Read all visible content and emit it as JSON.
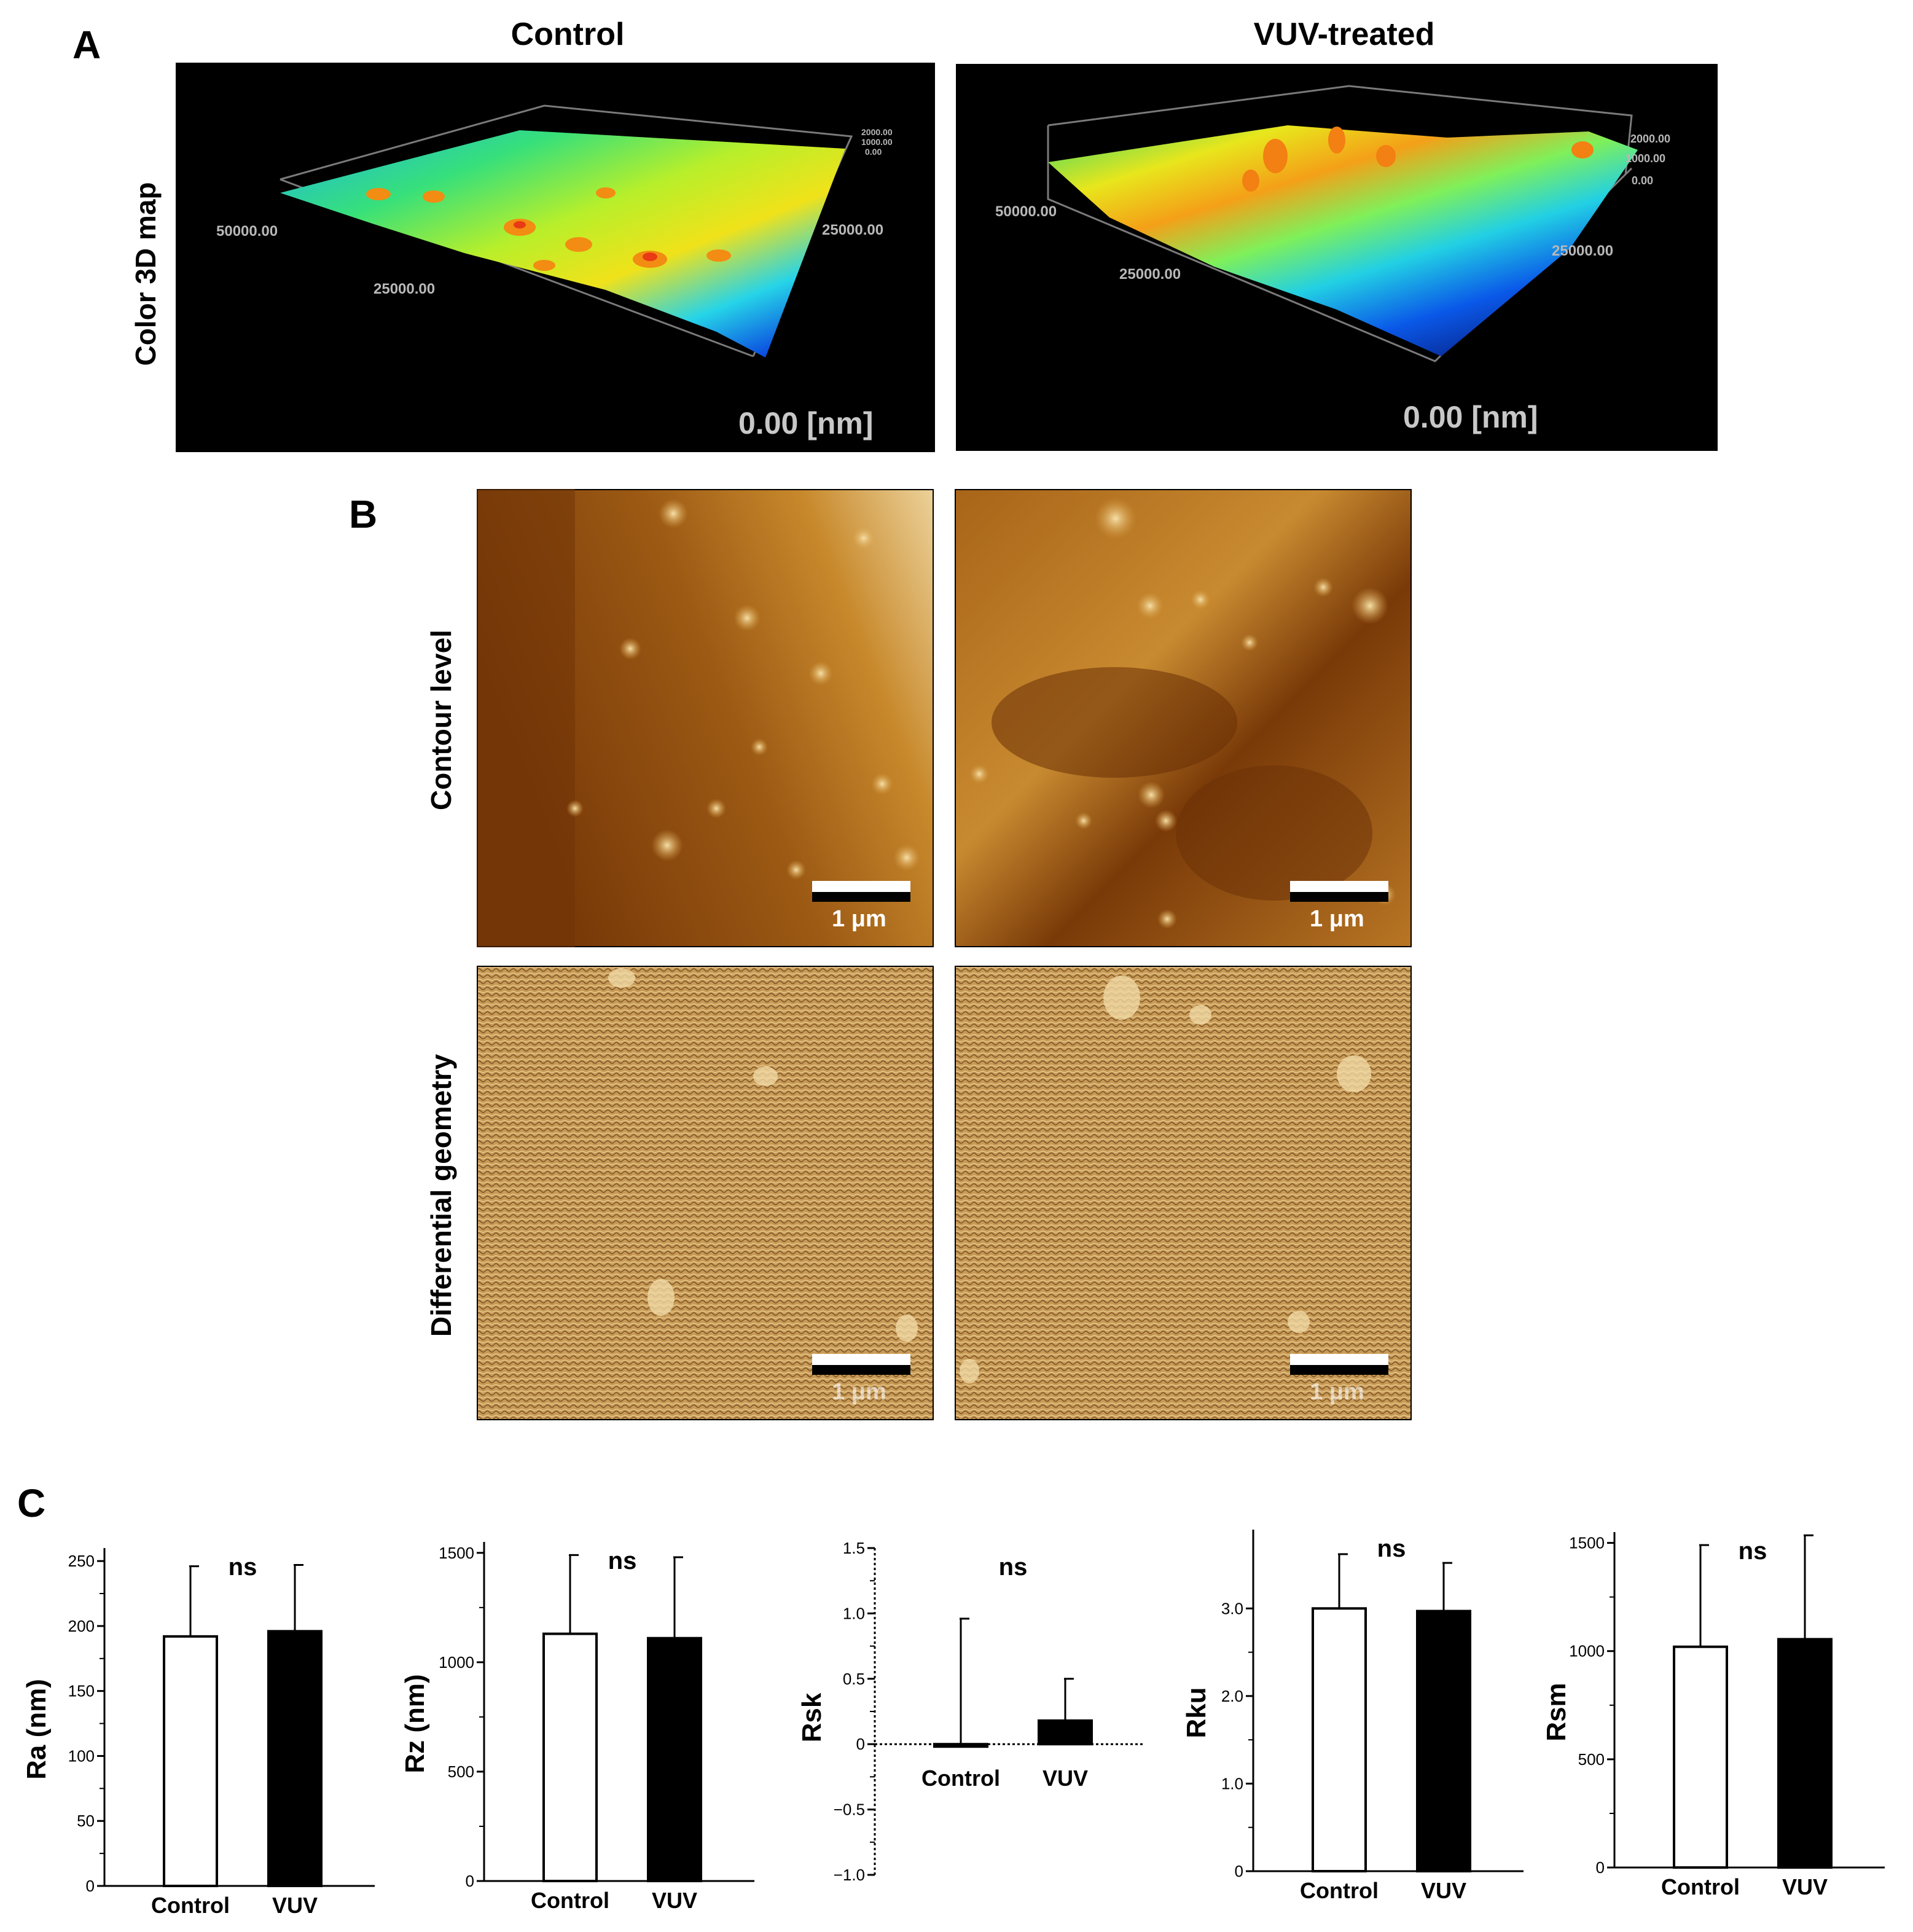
{
  "figure": {
    "panels": [
      "A",
      "B",
      "C"
    ],
    "col_titles": [
      "Control",
      "VUV-treated"
    ],
    "row_labels": {
      "a": "Color 3D map",
      "b_top": "Contour level",
      "b_bottom": "Differential geometry"
    },
    "map3d": {
      "control": {
        "ticks": [
          "50000.00",
          "25000.00",
          "25000.00",
          "2000.00",
          "1000.00",
          "0.00"
        ],
        "origin": "0.00 [nm]"
      },
      "vuv": {
        "ticks": [
          "50000.00",
          "25000.00",
          "25000.00",
          "2000.00",
          "1000.00",
          "0.00"
        ],
        "origin": "0.00 [nm]"
      }
    },
    "scalebar": "1 μm",
    "colors": {
      "control_bar": "#ffffff",
      "vuv_bar": "#000000",
      "map_bg": "#000000"
    }
  },
  "chart_data": [
    {
      "type": "bar",
      "ylabel": "Ra (nm)",
      "categories": [
        "Control",
        "VUV"
      ],
      "values": [
        192,
        196
      ],
      "errors": [
        54,
        51
      ],
      "annotation": "ns",
      "ylim": [
        0,
        260
      ],
      "yticks": [
        0,
        50,
        100,
        150,
        200,
        250
      ],
      "yticklabels": [
        "0",
        "50",
        "100",
        "150",
        "200",
        "250"
      ]
    },
    {
      "type": "bar",
      "ylabel": "Rz (nm)",
      "categories": [
        "Control",
        "VUV"
      ],
      "values": [
        1130,
        1110
      ],
      "errors": [
        360,
        370
      ],
      "annotation": "ns",
      "ylim": [
        0,
        1550
      ],
      "yticks": [
        0,
        500,
        1000,
        1500
      ],
      "yticklabels": [
        "0",
        "500",
        "1000",
        "1500"
      ]
    },
    {
      "type": "bar",
      "ylabel": "Rsk",
      "categories": [
        "Control",
        "VUV"
      ],
      "values": [
        0.0,
        0.18
      ],
      "errors": [
        0.96,
        0.32
      ],
      "annotation": "ns",
      "ylim": [
        -1.0,
        1.5
      ],
      "yticks": [
        -1.0,
        -0.5,
        0,
        0.5,
        1.0,
        1.5
      ],
      "yticklabels": [
        "−1.0",
        "−0.5",
        "0",
        "0.5",
        "1.0",
        "1.5"
      ]
    },
    {
      "type": "bar",
      "ylabel": "Rku",
      "categories": [
        "Control",
        "VUV"
      ],
      "values": [
        3.0,
        2.97
      ],
      "errors": [
        0.62,
        0.55
      ],
      "annotation": "ns",
      "ylim": [
        0,
        3.9
      ],
      "yticks": [
        0,
        1.0,
        2.0,
        3.0
      ],
      "yticklabels": [
        "0",
        "1.0",
        "2.0",
        "3.0"
      ]
    },
    {
      "type": "bar",
      "ylabel": "Rsm",
      "categories": [
        "Control",
        "VUV"
      ],
      "values": [
        1020,
        1055
      ],
      "errors": [
        470,
        480
      ],
      "annotation": "ns",
      "ylim": [
        0,
        1550
      ],
      "yticks": [
        0,
        500,
        1000,
        1500
      ],
      "yticklabels": [
        "0",
        "500",
        "1000",
        "1500"
      ]
    }
  ]
}
